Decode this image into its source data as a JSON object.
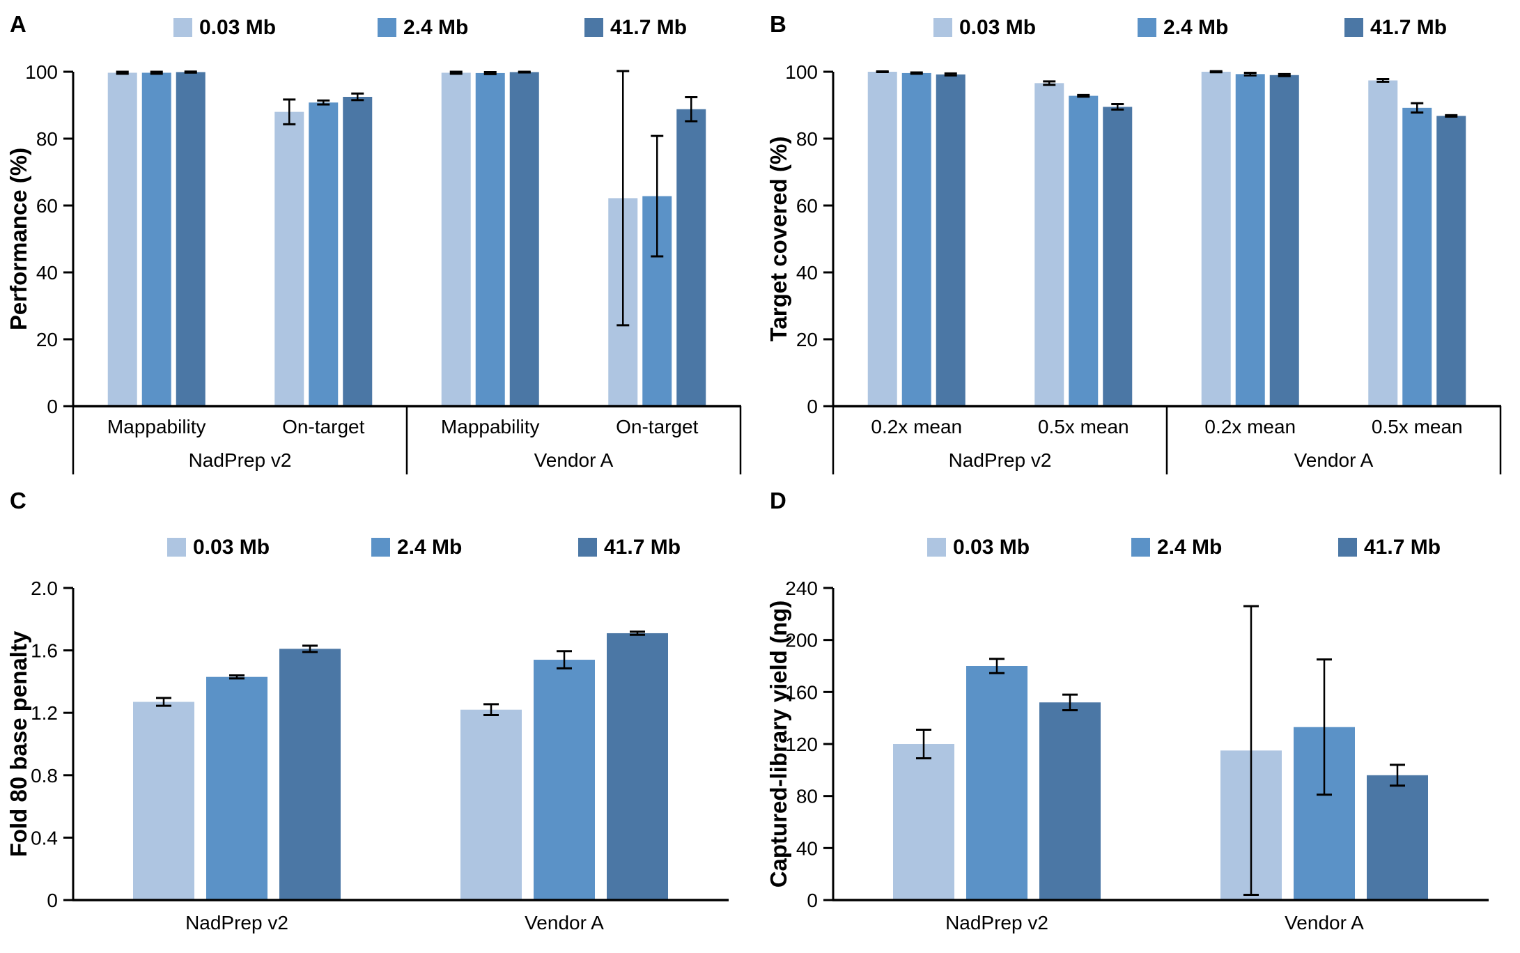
{
  "figure": {
    "description_visible_panels": [
      "A",
      "B",
      "C",
      "D"
    ]
  },
  "chart_data": [
    {
      "panel_letter": "A",
      "type": "bar",
      "title": "",
      "ylabel": "Performance (%)",
      "ylim": [
        0,
        100
      ],
      "yticks": [
        [
          0,
          "0"
        ],
        [
          20,
          "20"
        ],
        [
          40,
          "40"
        ],
        [
          60,
          "60"
        ],
        [
          80,
          "80"
        ],
        [
          100,
          "100"
        ]
      ],
      "grid": false,
      "legend_position": "top",
      "legend": [
        {
          "label": "0.03 Mb",
          "color": "#AEC5E1"
        },
        {
          "label": "2.4 Mb",
          "color": "#5B92C7"
        },
        {
          "label": "41.7 Mb",
          "color": "#4B77A5"
        }
      ],
      "axis_table": true,
      "categories": [
        "Mappability",
        "On-target",
        "Mappability",
        "On-target"
      ],
      "group_row": [
        "NadPrep v2",
        "Vendor A"
      ],
      "series": [
        {
          "name": "0.03 Mb",
          "values": [
            99.7,
            88.0,
            99.7,
            62.2
          ],
          "errors": [
            0.3,
            3.7,
            0.3,
            38.0
          ]
        },
        {
          "name": "2.4 Mb",
          "values": [
            99.7,
            90.8,
            99.6,
            62.8
          ],
          "errors": [
            0.3,
            0.6,
            0.3,
            18.0
          ]
        },
        {
          "name": "41.7 Mb",
          "values": [
            99.9,
            92.5,
            99.9,
            88.8
          ],
          "errors": [
            0.15,
            1.0,
            0.1,
            3.6
          ]
        }
      ]
    },
    {
      "panel_letter": "B",
      "type": "bar",
      "title": "",
      "ylabel": "Target covered (%)",
      "ylim": [
        0,
        100
      ],
      "yticks": [
        [
          0,
          "0"
        ],
        [
          20,
          "20"
        ],
        [
          40,
          "40"
        ],
        [
          60,
          "60"
        ],
        [
          80,
          "80"
        ],
        [
          100,
          "100"
        ]
      ],
      "grid": false,
      "legend_position": "top",
      "legend": [
        {
          "label": "0.03 Mb",
          "color": "#AEC5E1"
        },
        {
          "label": "2.4 Mb",
          "color": "#5B92C7"
        },
        {
          "label": "41.7 Mb",
          "color": "#4B77A5"
        }
      ],
      "axis_table": true,
      "categories": [
        "0.2x mean",
        "0.5x mean",
        "0.2x mean",
        "0.5x mean"
      ],
      "group_row": [
        "NadPrep v2",
        "Vendor A"
      ],
      "series": [
        {
          "name": "0.03 Mb",
          "values": [
            100.0,
            96.6,
            100.0,
            97.4
          ],
          "errors": [
            0.1,
            0.5,
            0.15,
            0.4
          ]
        },
        {
          "name": "2.4 Mb",
          "values": [
            99.6,
            92.8,
            99.3,
            89.2
          ],
          "errors": [
            0.2,
            0.25,
            0.4,
            1.4
          ]
        },
        {
          "name": "41.7 Mb",
          "values": [
            99.2,
            89.5,
            99.0,
            86.8
          ],
          "errors": [
            0.3,
            0.8,
            0.3,
            0.2
          ]
        }
      ]
    },
    {
      "panel_letter": "C",
      "type": "bar",
      "title": "",
      "ylabel": "Fold 80 base penalty",
      "ylim": [
        0,
        2.0
      ],
      "yticks": [
        [
          0,
          "0"
        ],
        [
          0.4,
          "0.4"
        ],
        [
          0.8,
          "0.8"
        ],
        [
          1.2,
          "1.2"
        ],
        [
          1.6,
          "1.6"
        ],
        [
          2.0,
          "2.0"
        ]
      ],
      "grid": false,
      "legend_position": "top",
      "legend": [
        {
          "label": "0.03 Mb",
          "color": "#AEC5E1"
        },
        {
          "label": "2.4 Mb",
          "color": "#5B92C7"
        },
        {
          "label": "41.7 Mb",
          "color": "#4B77A5"
        }
      ],
      "axis_table": false,
      "categories": [
        "NadPrep v2",
        "Vendor A"
      ],
      "group_row": [],
      "series": [
        {
          "name": "0.03 Mb",
          "values": [
            1.27,
            1.22
          ],
          "errors": [
            0.025,
            0.035
          ]
        },
        {
          "name": "2.4 Mb",
          "values": [
            1.43,
            1.54
          ],
          "errors": [
            0.01,
            0.055
          ]
        },
        {
          "name": "41.7 Mb",
          "values": [
            1.61,
            1.71
          ],
          "errors": [
            0.02,
            0.01
          ]
        }
      ]
    },
    {
      "panel_letter": "D",
      "type": "bar",
      "title": "",
      "ylabel": "Captured-library yield (ng)",
      "ylim": [
        0,
        240
      ],
      "yticks": [
        [
          0,
          "0"
        ],
        [
          40,
          "40"
        ],
        [
          80,
          "80"
        ],
        [
          120,
          "120"
        ],
        [
          160,
          "160"
        ],
        [
          200,
          "200"
        ],
        [
          240,
          "240"
        ]
      ],
      "grid": false,
      "legend_position": "top",
      "legend": [
        {
          "label": "0.03 Mb",
          "color": "#AEC5E1"
        },
        {
          "label": "2.4 Mb",
          "color": "#5B92C7"
        },
        {
          "label": "41.7 Mb",
          "color": "#4B77A5"
        }
      ],
      "axis_table": false,
      "categories": [
        "NadPrep v2",
        "Vendor A"
      ],
      "group_row": [],
      "series": [
        {
          "name": "0.03 Mb",
          "values": [
            120,
            115
          ],
          "errors": [
            11,
            111
          ]
        },
        {
          "name": "2.4 Mb",
          "values": [
            180,
            133
          ],
          "errors": [
            5.5,
            52
          ]
        },
        {
          "name": "41.7 Mb",
          "values": [
            152,
            96
          ],
          "errors": [
            6,
            8
          ]
        }
      ]
    }
  ]
}
